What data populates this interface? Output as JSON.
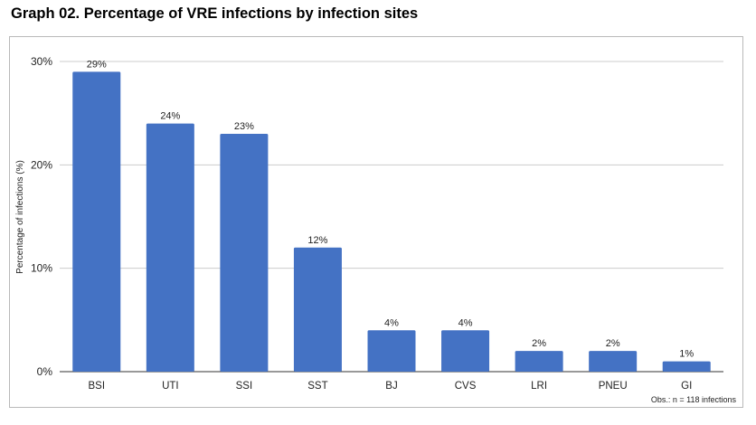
{
  "chart_data": {
    "type": "bar",
    "title": "Graph 02. Percentage of VRE infections by infection sites",
    "ylabel": "Percentage of infections (%)",
    "xlabel": "",
    "categories": [
      "BSI",
      "UTI",
      "SSI",
      "SST",
      "BJ",
      "CVS",
      "LRI",
      "PNEU",
      "GI"
    ],
    "values": [
      29,
      24,
      23,
      12,
      4,
      4,
      2,
      2,
      1
    ],
    "data_labels": [
      "29%",
      "24%",
      "23%",
      "12%",
      "4%",
      "4%",
      "2%",
      "2%",
      "1%"
    ],
    "ylim": [
      0,
      30
    ],
    "yticks": [
      0,
      10,
      20,
      30
    ],
    "ytick_labels": [
      "0%",
      "10%",
      "20%",
      "30%"
    ],
    "grid": true,
    "legend": "none",
    "bar_color": "#4472c4",
    "note": "Obs.: n = 118 infections"
  }
}
